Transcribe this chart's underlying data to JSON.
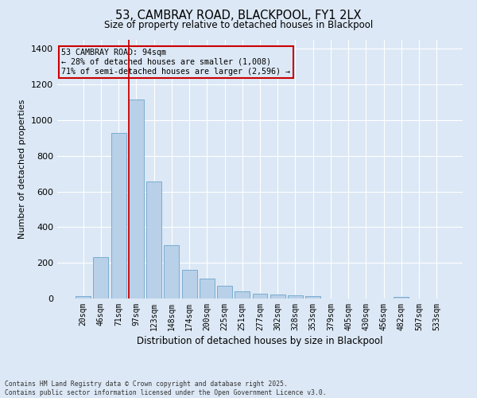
{
  "title": "53, CAMBRAY ROAD, BLACKPOOL, FY1 2LX",
  "subtitle": "Size of property relative to detached houses in Blackpool",
  "xlabel": "Distribution of detached houses by size in Blackpool",
  "ylabel": "Number of detached properties",
  "footnote1": "Contains HM Land Registry data © Crown copyright and database right 2025.",
  "footnote2": "Contains public sector information licensed under the Open Government Licence v3.0.",
  "categories": [
    "20sqm",
    "46sqm",
    "71sqm",
    "97sqm",
    "123sqm",
    "148sqm",
    "174sqm",
    "200sqm",
    "225sqm",
    "251sqm",
    "277sqm",
    "302sqm",
    "328sqm",
    "353sqm",
    "379sqm",
    "405sqm",
    "430sqm",
    "456sqm",
    "482sqm",
    "507sqm",
    "533sqm"
  ],
  "values": [
    15,
    230,
    930,
    1115,
    655,
    300,
    160,
    110,
    70,
    38,
    25,
    22,
    20,
    12,
    0,
    0,
    0,
    0,
    10,
    0,
    0
  ],
  "bar_color": "#b8d0e8",
  "bar_edge_color": "#7aadd0",
  "bg_color": "#dce8f5",
  "grid_color": "#ffffff",
  "vline_color": "#cc0000",
  "annotation_title": "53 CAMBRAY ROAD: 94sqm",
  "annotation_line1": "← 28% of detached houses are smaller (1,008)",
  "annotation_line2": "71% of semi-detached houses are larger (2,596) →",
  "annotation_box_color": "#cc0000",
  "ylim": [
    0,
    1450
  ],
  "yticks": [
    0,
    200,
    400,
    600,
    800,
    1000,
    1200,
    1400
  ]
}
